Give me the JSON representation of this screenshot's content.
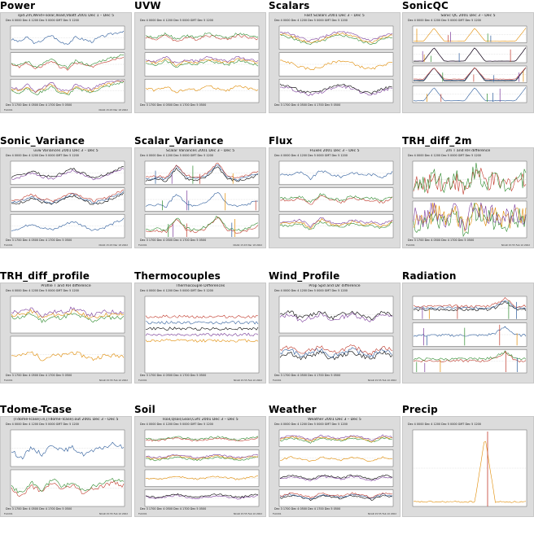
{
  "colors": {
    "thumb_bg": "#dcdcdc",
    "panel_bg": "#ffffff",
    "series": [
      "#2a5a9a",
      "#c0392b",
      "#2e8b2e",
      "#e08a00",
      "#7a3a9a",
      "#000000"
    ]
  },
  "cells": [
    {
      "title": "Power",
      "plot_title": "spd.2m,Wind+solar,Iload,Vbatt 2001 Dec 1 – Dec 5",
      "panels": 3,
      "style": "power",
      "date_top": "Dec 4 0000     Dec 4 1200     Dec 5 0000 GMT     Dec 5 1200",
      "date_bottom": "Dec 3 1700   Dec 4 0500   Dec 4 1700   Dec 5 0500",
      "footer_left": "FLUX01",
      "footer_right": "NCAR 15:45 Mar 18 2002"
    },
    {
      "title": "UVW",
      "plot_title": "",
      "panels": 3,
      "style": "uvw",
      "date_top": "Dec 4 0000     Dec 4 1200     Dec 5 0000 GMT     Dec 5 1200",
      "date_bottom": "Dec 3 1700   Dec 4 0500   Dec 4 1700   Dec 5 0500",
      "footer_left": "",
      "footer_right": ""
    },
    {
      "title": "Scalars",
      "plot_title": "Fast Scalars 2001 Dec 3 – Dec 5",
      "panels": 3,
      "style": "scalars",
      "date_top": "Dec 4 0000     Dec 4 1200     Dec 5 0000 GMT     Dec 5 1200",
      "date_bottom": "Dec 3 1700   Dec 4 0500   Dec 4 1700   Dec 5 0500",
      "footer_left": "",
      "footer_right": ""
    },
    {
      "title": "SonicQC",
      "plot_title": "Sonic QC 2001 Dec 3 – Dec 5",
      "panels": 4,
      "style": "sonicqc",
      "date_top": "Dec 4 0000     Dec 4 1200     Dec 5 0000 GMT     Dec 5 1200",
      "date_bottom": "",
      "footer_left": "",
      "footer_right": ""
    },
    {
      "title": "Sonic_Variance",
      "plot_title": "uvw Variances 2001 Dec 3 – Dec 5",
      "panels": 3,
      "style": "variance",
      "date_top": "Dec 4 0000     Dec 4 1200     Dec 5 0000 GMT     Dec 5 1200",
      "date_bottom": "Dec 3 1700   Dec 4 0500   Dec 4 1700   Dec 5 0500",
      "footer_left": "FLUX01",
      "footer_right": "NCAR 15:45 Mar 18 2002"
    },
    {
      "title": "Scalar_Variance",
      "plot_title": "Scalar Variances 2001 Dec 3 – Dec 5",
      "panels": 3,
      "style": "scalarvar",
      "date_top": "Dec 4 0000     Dec 4 1200     Dec 5 0000 GMT     Dec 5 1200",
      "date_bottom": "Dec 3 1700   Dec 4 0500   Dec 4 1700   Dec 5 0500",
      "footer_left": "FLUX01",
      "footer_right": "NCAR 15:45 Mar 18 2002"
    },
    {
      "title": "Flux",
      "plot_title": "Fluxes 2001 Dec 3 – Dec 5",
      "panels": 3,
      "style": "flux",
      "date_top": "Dec 4 0000     Dec 4 1200     Dec 5 0000 GMT     Dec 5 1200",
      "date_bottom": "",
      "footer_left": "",
      "footer_right": ""
    },
    {
      "title": "TRH_diff_2m",
      "plot_title": "2m T and RH difference",
      "panels": 2,
      "style": "trh2m",
      "date_top": "Dec 4 0000     Dec 4 1200     Dec 5 0000 GMT     Dec 5 1200",
      "date_bottom": "Dec 3 1700   Dec 4 0500   Dec 4 1700   Dec 5 0500",
      "footer_left": "FLUX01",
      "footer_right": "NCAR 15:55 Feb 10 2002"
    },
    {
      "title": "TRH_diff_profile",
      "plot_title": "Profile T and RH difference",
      "panels": 2,
      "style": "trhprof",
      "date_top": "Dec 4 0000     Dec 4 1200     Dec 5 0000 GMT     Dec 5 1200",
      "date_bottom": "Dec 3 1700   Dec 4 0500   Dec 4 1700   Dec 5 0500",
      "footer_left": "FLUX01",
      "footer_right": "NCAR 15:55 Feb 10 2002"
    },
    {
      "title": "Thermocouples",
      "plot_title": "Thermocouple Differences",
      "panels": 1,
      "style": "thermo",
      "date_top": "Dec 4 0000     Dec 4 1200     Dec 5 0000 GMT     Dec 5 1200",
      "date_bottom": "Dec 3 1700   Dec 4 0500   Dec 4 1700   Dec 5 0500",
      "footer_left": "FLUX01",
      "footer_right": "NCAR 15:55 Feb 10 2002"
    },
    {
      "title": "Wind_Profile",
      "plot_title": "Prop Spd and Dir difference",
      "panels": 2,
      "style": "windprof",
      "date_top": "Dec 4 0000     Dec 4 1200     Dec 5 0000 GMT     Dec 5 1200",
      "date_bottom": "Dec 3 1700   Dec 4 0500   Dec 4 1700   Dec 5 0500",
      "footer_left": "FLUX01",
      "footer_right": "NCAR 15:55 Feb 10 2002"
    },
    {
      "title": "Radiation",
      "plot_title": "",
      "panels": 3,
      "style": "radiation",
      "date_top": "",
      "date_bottom": "",
      "footer_left": "",
      "footer_right": ""
    },
    {
      "title": "Tdome-Tcase",
      "plot_title": "(Tdome-Tcase).in,(Tdome-Tcase).out 2001 Dec 3 – Dec 5",
      "panels": 2,
      "style": "tdome",
      "date_top": "Dec 4 0000     Dec 4 1200     Dec 5 0000 GMT     Dec 5 1200",
      "date_bottom": "Dec 3 1700   Dec 4 0500   Dec 4 1700   Dec 5 0500",
      "footer_left": "FLUX01",
      "footer_right": "NCAR 15:55 Feb 10 2002"
    },
    {
      "title": "Soil",
      "plot_title": "Tsoil,Qsoil,Gsoil,Cvfc 2001 Dec 3 – Dec 5",
      "panels": 4,
      "style": "soil",
      "date_top": "Dec 4 0000     Dec 4 1200     Dec 5 0000 GMT     Dec 5 1200",
      "date_bottom": "Dec 3 1700   Dec 4 0500   Dec 4 1700   Dec 5 0500",
      "footer_left": "FLUX01",
      "footer_right": "NCAR 15:55 Feb 10 2002"
    },
    {
      "title": "Weather",
      "plot_title": "Weather 2001 Dec 3 – Dec 5",
      "panels": 4,
      "style": "weather",
      "date_top": "Dec 4 0000     Dec 4 1200     Dec 5 0000 GMT     Dec 5 1200",
      "date_bottom": "Dec 3 1700   Dec 4 0500   Dec 4 1700   Dec 5 0500",
      "footer_left": "FLUX01",
      "footer_right": "NCAR 15:55 Feb 10 2002"
    },
    {
      "title": "Precip",
      "plot_title": "",
      "panels": 1,
      "style": "precip",
      "date_top": "Dec 4 0000     Dec 4 1200     Dec 5 0000 GMT     Dec 5 1200",
      "date_bottom": "",
      "footer_left": "",
      "footer_right": ""
    }
  ],
  "chart_data": [
    {
      "type": "line",
      "title": "spd.2m,Wind+solar,Iload,Vbatt 2001 Dec 1 – Dec 5",
      "xlabel": "",
      "ylabel": "",
      "series": [
        {
          "values": [
            0.5,
            0.4,
            0.6,
            0.3,
            0.5,
            0.7,
            0.4,
            0.3,
            0.6,
            0.5,
            0.4,
            0.6,
            0.7,
            0.8,
            0.9
          ]
        },
        {
          "values": [
            0.2,
            0.2,
            0.2,
            0.2,
            0.2,
            0.2,
            0.2,
            0.2,
            0.2,
            0.2,
            0.2,
            0.2,
            0.2,
            0.2,
            0.2
          ]
        }
      ],
      "grid": false
    },
    {
      "type": "line",
      "title": "",
      "series": [
        {
          "values": [
            0.6,
            0.5,
            0.7,
            0.4,
            0.6,
            0.5,
            0.7,
            0.6,
            0.5,
            0.7,
            0.6,
            0.5
          ]
        },
        {
          "values": [
            0.4,
            0.5,
            0.3,
            0.5,
            0.4,
            0.6,
            0.4,
            0.5,
            0.3,
            0.5,
            0.4,
            0.6
          ]
        }
      ],
      "grid": false
    },
    {
      "type": "line",
      "title": "Fast Scalars 2001 Dec 3 – Dec 5",
      "series": [
        {
          "values": [
            0.7,
            0.6,
            0.4,
            0.3,
            0.4,
            0.6,
            0.7,
            0.6,
            0.4,
            0.3,
            0.5,
            0.6
          ]
        }
      ],
      "grid": false
    },
    {
      "type": "bar",
      "title": "Sonic QC 2001 Dec 3 – Dec 5",
      "series": [
        {
          "values": [
            0,
            0,
            1,
            0,
            0,
            0,
            1,
            0,
            0,
            0,
            0,
            1
          ]
        }
      ],
      "grid": false
    },
    {
      "type": "line",
      "title": "uvw Variances 2001 Dec 3 – Dec 5",
      "series": [
        {
          "values": [
            0.3,
            0.4,
            0.6,
            0.4,
            0.3,
            0.5,
            0.7,
            0.5,
            0.3,
            0.4,
            0.6,
            0.8
          ]
        }
      ],
      "grid": false
    },
    {
      "type": "line",
      "title": "Scalar Variances 2001 Dec 3 – Dec 5",
      "series": [
        {
          "values": [
            0.2,
            0.3,
            0.2,
            0.8,
            0.3,
            0.2,
            0.4,
            0.9,
            0.3,
            0.2,
            0.3,
            0.5
          ]
        }
      ],
      "grid": false
    },
    {
      "type": "line",
      "title": "Fluxes 2001 Dec 3 – Dec 5",
      "series": [
        {
          "values": [
            0.5,
            0.5,
            0.6,
            0.3,
            0.7,
            0.5,
            0.4,
            0.6,
            0.5,
            0.5,
            0.4,
            0.6
          ]
        }
      ],
      "grid": false
    },
    {
      "type": "line",
      "title": "2m T and RH difference",
      "series": [
        {
          "values": [
            0.5,
            0.3,
            0.7,
            0.4,
            0.6,
            0.2,
            0.8,
            0.5,
            0.5,
            0.4,
            0.6,
            0.5
          ]
        }
      ],
      "grid": false
    },
    {
      "type": "line",
      "title": "Profile T and RH difference",
      "series": [
        {
          "values": [
            0.5,
            0.5,
            0.6,
            0.4,
            0.5,
            0.5,
            0.6,
            0.5,
            0.4,
            0.5,
            0.5,
            0.5
          ]
        }
      ],
      "grid": false
    },
    {
      "type": "line",
      "title": "Thermocouple Differences",
      "series": [
        {
          "values": [
            0.5,
            0.5,
            0.5,
            0.5,
            0.5,
            0.5,
            0.5,
            0.5,
            0.5,
            0.5,
            0.5,
            0.5
          ]
        }
      ],
      "grid": false
    },
    {
      "type": "line",
      "title": "Prop Spd and Dir difference",
      "series": [
        {
          "values": [
            0.5,
            0.6,
            0.4,
            0.5,
            0.6,
            0.4,
            0.5,
            0.6,
            0.5,
            0.4,
            0.6,
            0.5
          ]
        }
      ],
      "grid": false
    },
    {
      "type": "line",
      "title": "",
      "series": [
        {
          "values": [
            0.5,
            0.5,
            0.5,
            0.5,
            0.5,
            0.5,
            0.5,
            0.5,
            0.6,
            0.9,
            0.5,
            0.5
          ]
        }
      ],
      "grid": false
    },
    {
      "type": "line",
      "title": "(Tdome-Tcase).in,(Tdome-Tcase).out 2001 Dec 3 – Dec 5",
      "series": [
        {
          "values": [
            0.5,
            0.3,
            0.6,
            0.4,
            0.7,
            0.5,
            0.6,
            0.4,
            0.5,
            0.6,
            0.7,
            0.6
          ]
        }
      ],
      "grid": false
    },
    {
      "type": "line",
      "title": "Tsoil,Qsoil,Gsoil,Cvfc 2001 Dec 3 – Dec 5",
      "series": [
        {
          "values": [
            0.5,
            0.4,
            0.5,
            0.6,
            0.5,
            0.4,
            0.5,
            0.6,
            0.5,
            0.4,
            0.5,
            0.6
          ]
        }
      ],
      "grid": false
    },
    {
      "type": "line",
      "title": "Weather 2001 Dec 3 – Dec 5",
      "series": [
        {
          "values": [
            0.4,
            0.6,
            0.5,
            0.3,
            0.6,
            0.5,
            0.4,
            0.6,
            0.5,
            0.3,
            0.6,
            0.5
          ]
        }
      ],
      "grid": false
    },
    {
      "type": "line",
      "title": "",
      "series": [
        {
          "values": [
            0,
            0,
            0,
            0,
            0,
            0,
            0,
            1,
            0,
            0,
            0,
            0
          ]
        }
      ],
      "grid": false
    }
  ]
}
